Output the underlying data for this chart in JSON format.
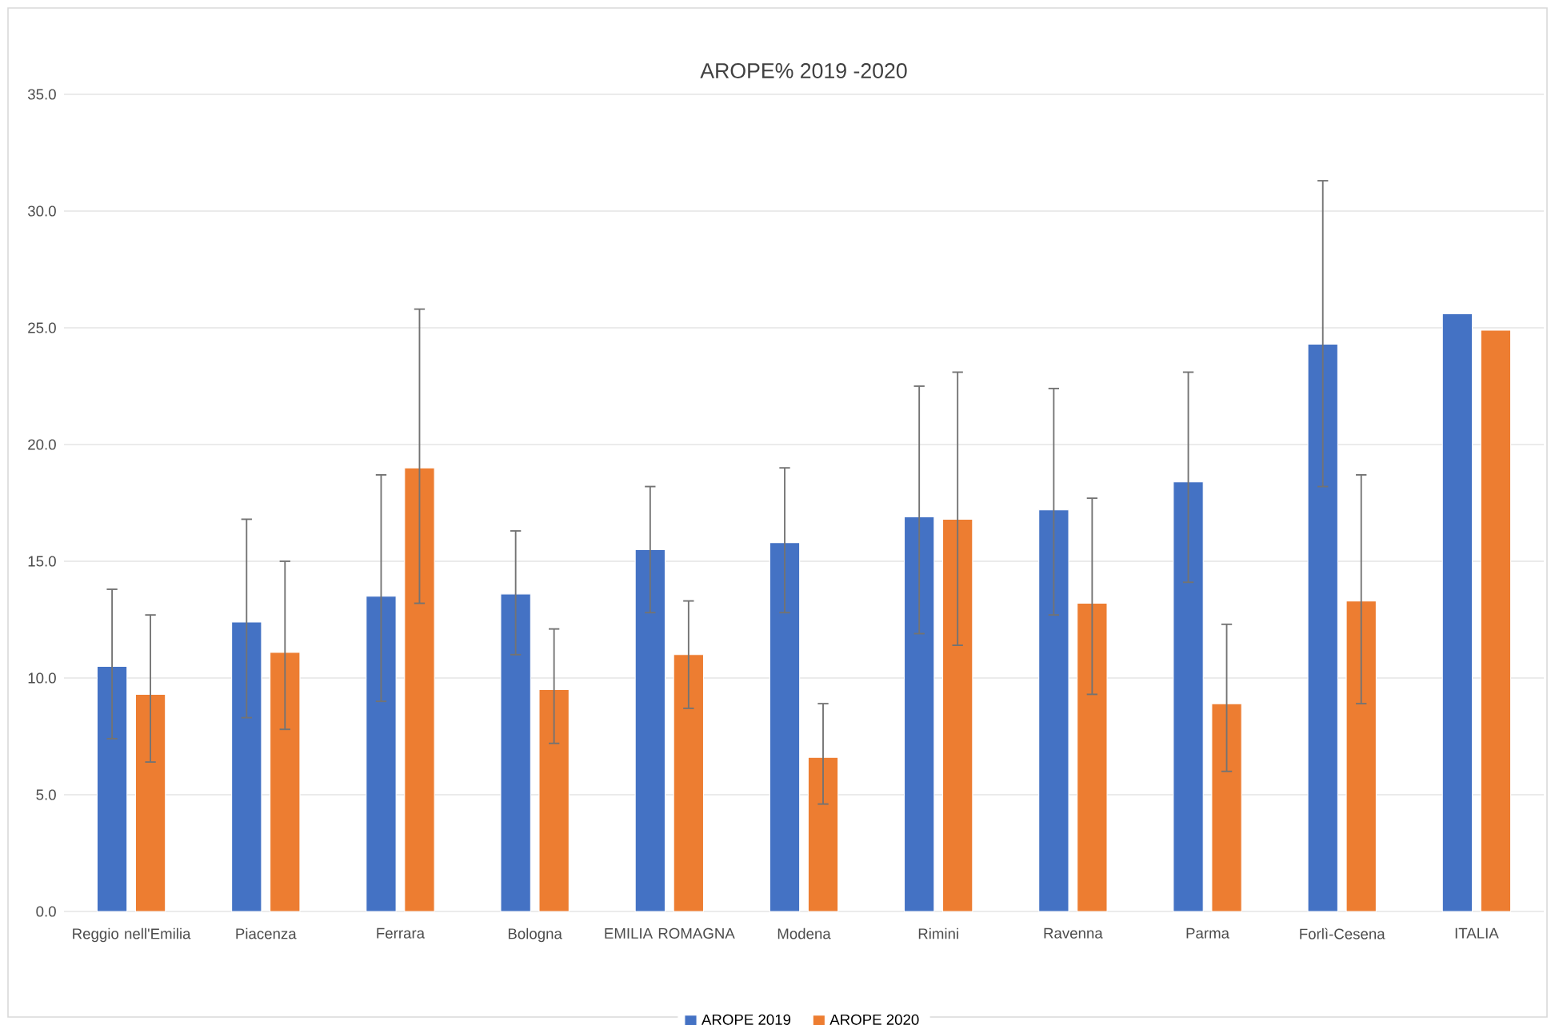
{
  "chart_data": {
    "type": "bar",
    "title": "AROPE% 2019 -2020",
    "categories": [
      "Reggio nell'Emilia",
      "Piacenza",
      "Ferrara",
      "Bologna",
      "EMILIA ROMAGNA",
      "Modena",
      "Rimini",
      "Ravenna",
      "Parma",
      "Forlì-Cesena",
      "ITALIA"
    ],
    "series": [
      {
        "name": "AROPE 2019",
        "color": "#4472c4",
        "values": [
          10.5,
          12.4,
          13.5,
          13.6,
          15.5,
          15.8,
          16.9,
          17.2,
          18.4,
          24.3,
          25.6
        ],
        "errors": [
          [
            7.4,
            13.8
          ],
          [
            8.3,
            16.8
          ],
          [
            9.0,
            18.7
          ],
          [
            11.0,
            16.3
          ],
          [
            12.8,
            18.2
          ],
          [
            12.8,
            19.0
          ],
          [
            11.9,
            22.5
          ],
          [
            12.7,
            22.4
          ],
          [
            14.1,
            23.1
          ],
          [
            18.2,
            31.3
          ],
          null
        ]
      },
      {
        "name": "AROPE 2020",
        "color": "#ed7d31",
        "values": [
          9.3,
          11.1,
          19.0,
          9.5,
          11.0,
          6.6,
          16.8,
          13.2,
          8.9,
          13.3,
          24.9
        ],
        "errors": [
          [
            6.4,
            12.7
          ],
          [
            7.8,
            15.0
          ],
          [
            13.2,
            25.8
          ],
          [
            7.2,
            12.1
          ],
          [
            8.7,
            13.3
          ],
          [
            4.6,
            8.9
          ],
          [
            11.4,
            23.1
          ],
          [
            9.3,
            17.7
          ],
          [
            6.0,
            12.3
          ],
          [
            8.9,
            18.7
          ],
          null
        ]
      }
    ],
    "ylim": [
      0,
      35
    ],
    "yticks": [
      {
        "value": 0,
        "label": "0.0"
      },
      {
        "value": 5,
        "label": "5.0"
      },
      {
        "value": 10,
        "label": "10.0"
      },
      {
        "value": 15,
        "label": "15.0"
      },
      {
        "value": 20,
        "label": "20.0"
      },
      {
        "value": 25,
        "label": "25.0"
      },
      {
        "value": 30,
        "label": "30.0"
      },
      {
        "value": 35,
        "label": "35.0"
      }
    ],
    "grid": "y",
    "legend": "bottom"
  }
}
